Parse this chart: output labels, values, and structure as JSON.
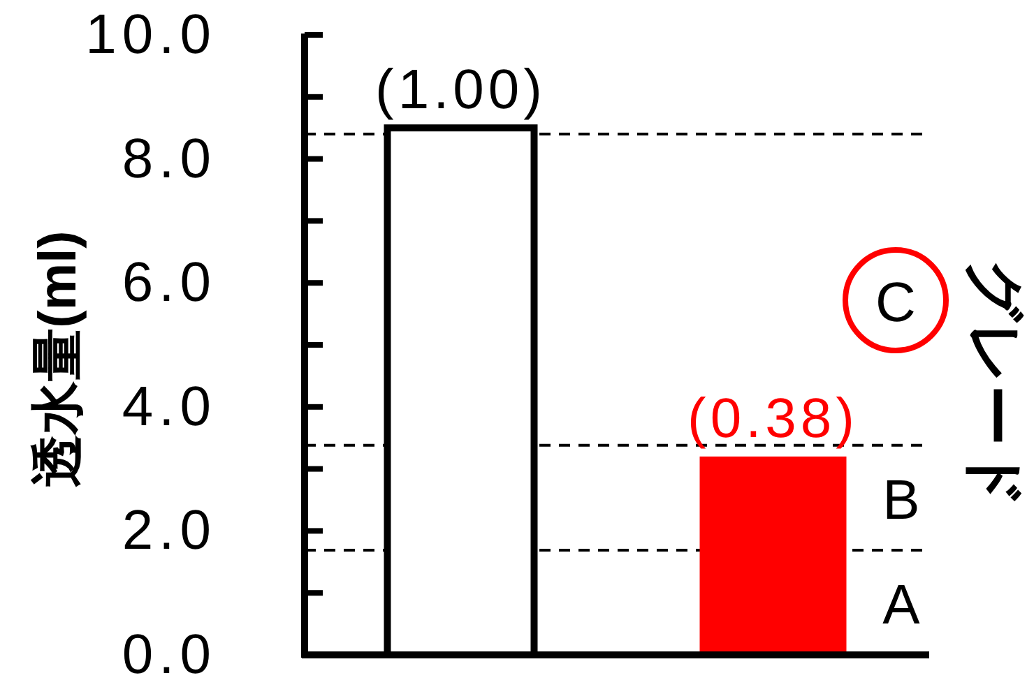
{
  "chart_data": {
    "type": "bar",
    "ylabel": "透水量(ml)",
    "categories": [
      null,
      null
    ],
    "values": [
      8.5,
      3.2
    ],
    "colors": [
      "#ffffff",
      "#ff0000"
    ],
    "ylim": [
      0,
      10
    ],
    "yticks": [
      {
        "value": 0,
        "label": "0.0"
      },
      {
        "value": 1,
        "label": null
      },
      {
        "value": 2,
        "label": "2.0"
      },
      {
        "value": 3,
        "label": null
      },
      {
        "value": 4,
        "label": "4.0"
      },
      {
        "value": 5,
        "label": null
      },
      {
        "value": 6,
        "label": "6.0"
      },
      {
        "value": 7,
        "label": null
      },
      {
        "value": 8,
        "label": "8.0"
      },
      {
        "value": 9,
        "label": null
      },
      {
        "value": 10,
        "label": "10.0"
      }
    ],
    "ref_lines": [
      {
        "axis": "y",
        "value": 8.4,
        "line_style": "dashed",
        "color": "#000000"
      },
      {
        "axis": "y",
        "value": 3.38,
        "line_style": "dashed",
        "color": "#000000"
      },
      {
        "axis": "y",
        "value": 1.69,
        "line_style": "dashed",
        "color": "#000000"
      }
    ],
    "annotations": [
      {
        "text": "(1.00)",
        "y": 8.5
      },
      {
        "text": "(0.38)",
        "y": 3.2
      },
      "A",
      "B",
      "C",
      "グレード"
    ]
  }
}
